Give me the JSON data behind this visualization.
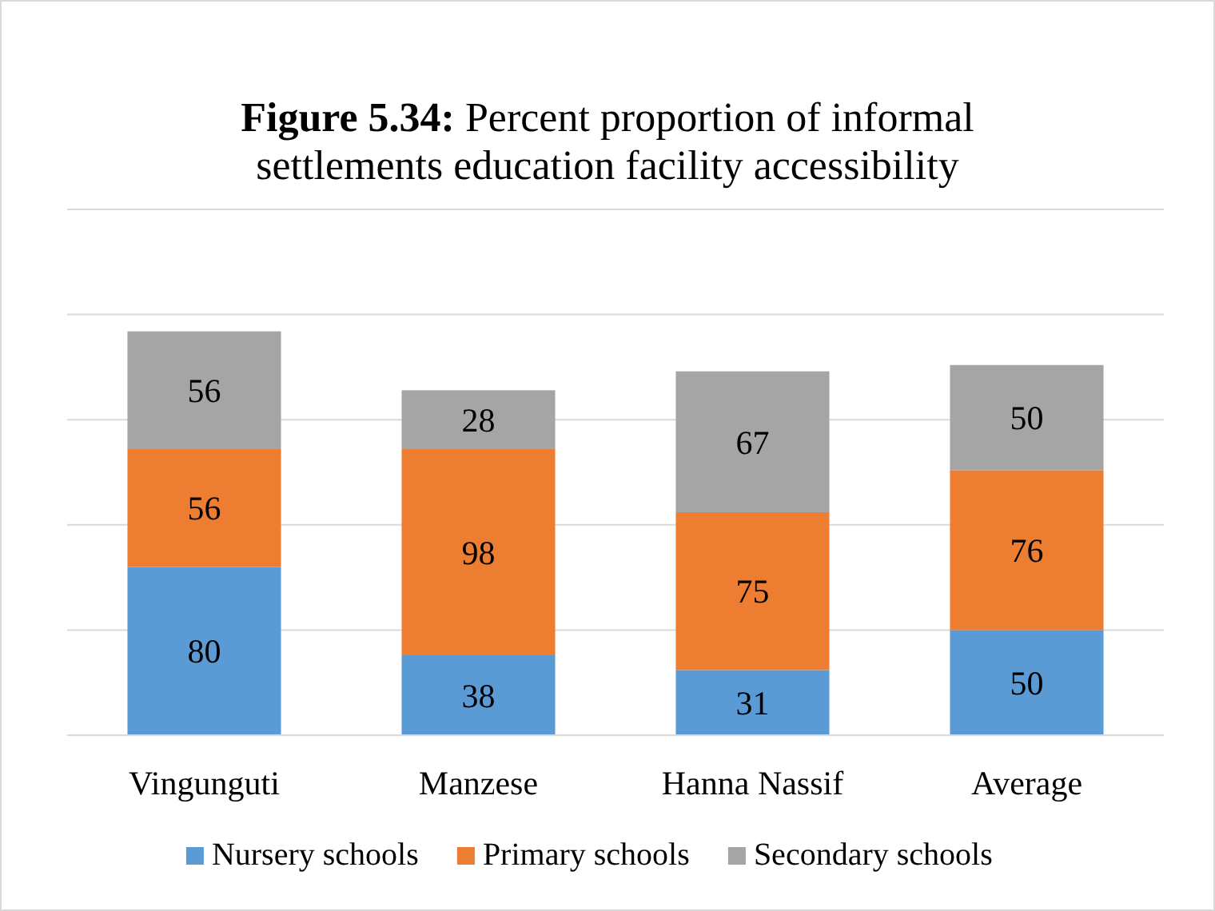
{
  "chart_data": {
    "type": "bar",
    "title": "Figure 5.34: Percent proportion of informal settlements education facility accessibility",
    "categories": [
      "Vingunguti",
      "Manzese",
      "Hanna Nassif",
      "Average"
    ],
    "series": [
      {
        "name": "Nursery schools",
        "color": "#5b9bd5",
        "values": [
          80,
          38,
          31,
          50
        ]
      },
      {
        "name": "Primary schools",
        "color": "#ed7d31",
        "values": [
          56,
          98,
          75,
          76
        ]
      },
      {
        "name": "Secondary schools",
        "color": "#a5a5a5",
        "values": [
          56,
          28,
          67,
          50
        ]
      }
    ],
    "stacked": true,
    "data_labels": true,
    "ylim": [
      0,
      250
    ],
    "yticks": [
      {
        "value": 0,
        "label": null
      },
      {
        "value": 50,
        "label": null
      },
      {
        "value": 100,
        "label": null
      },
      {
        "value": 150,
        "label": null
      },
      {
        "value": 200,
        "label": null
      },
      {
        "value": 250,
        "label": null
      }
    ],
    "tick_labels": "x",
    "grid": "y",
    "legend": "bottom"
  }
}
